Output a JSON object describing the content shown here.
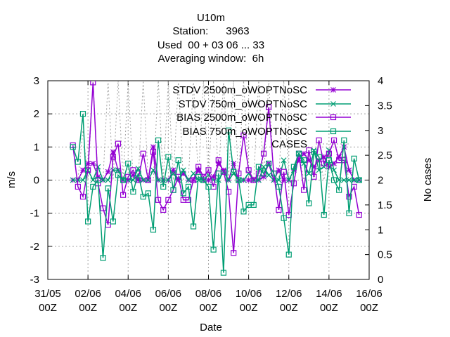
{
  "chart_data": {
    "type": "line",
    "title_lines": [
      "U10m",
      "Station:      3963",
      "Used  00 + 03 06 ... 33",
      "Averaging window:  6h"
    ],
    "xlabel": "Date",
    "ylabel": "m/s",
    "y2label": "No cases",
    "xlim": [
      0,
      16
    ],
    "ylim": [
      -3,
      3
    ],
    "y2lim": [
      0,
      4
    ],
    "x_ticks": [
      {
        "x": 0,
        "line1": "31/05",
        "line2": "00Z"
      },
      {
        "x": 2,
        "line1": "02/06",
        "line2": "00Z"
      },
      {
        "x": 4,
        "line1": "04/06",
        "line2": "00Z"
      },
      {
        "x": 6,
        "line1": "06/06",
        "line2": "00Z"
      },
      {
        "x": 8,
        "line1": "08/06",
        "line2": "00Z"
      },
      {
        "x": 10,
        "line1": "10/06",
        "line2": "00Z"
      },
      {
        "x": 12,
        "line1": "12/06",
        "line2": "00Z"
      },
      {
        "x": 14,
        "line1": "14/06",
        "line2": "00Z"
      },
      {
        "x": 16,
        "line1": "16/06",
        "line2": "00Z"
      }
    ],
    "y_ticks": [
      -3,
      -2,
      -1,
      0,
      1,
      2,
      3
    ],
    "y2_ticks": [
      "0",
      "0.5",
      "1",
      "1.5",
      "2",
      "2.5",
      "3",
      "3.5",
      "4"
    ],
    "grid": true,
    "legend_position": "top-right",
    "colors": {
      "purple": "#9400d3",
      "green": "#009e73",
      "grey": "#a0a0a0"
    },
    "series": [
      {
        "name": "STDV 2500m_oWOPTNoSC",
        "color": "#9400d3",
        "marker": "star",
        "x": [
          1.25,
          1.5,
          1.75,
          2.0,
          2.25,
          2.5,
          2.75,
          3.0,
          3.25,
          3.5,
          3.75,
          4.0,
          4.25,
          4.5,
          4.75,
          5.0,
          5.25,
          5.5,
          5.75,
          6.0,
          6.25,
          6.5,
          6.75,
          7.0,
          7.25,
          7.5,
          7.75,
          8.0,
          8.25,
          8.5,
          8.75,
          9.0,
          9.25,
          9.5,
          9.75,
          10.0,
          10.25,
          10.5,
          10.75,
          11.0,
          11.25,
          11.5,
          11.75,
          12.0,
          12.25,
          12.5,
          12.75,
          13.0,
          13.25,
          13.5,
          13.75,
          14.0,
          14.25,
          14.5,
          14.75,
          15.0,
          15.25,
          15.5
        ],
        "y": [
          0,
          0,
          0.3,
          0.5,
          0.5,
          0.1,
          0,
          0.25,
          0.85,
          0.3,
          0,
          0,
          0.15,
          0,
          0,
          0,
          1.0,
          0,
          0,
          0,
          0.3,
          0,
          0.2,
          0,
          0,
          0.3,
          0,
          0,
          0.1,
          0.5,
          0.3,
          0,
          0.5,
          0,
          0,
          0,
          0,
          0,
          0.1,
          0.5,
          0,
          0.3,
          0,
          0,
          0.3,
          0.6,
          0.8,
          0.6,
          0.4,
          0.6,
          0.7,
          0.4,
          0.5,
          0.7,
          1.0,
          0.3,
          0,
          0
        ],
        "y_axis": "y1"
      },
      {
        "name": "STDV 750m_oWOPTNoSC",
        "color": "#009e73",
        "marker": "x",
        "x": [
          1.25,
          1.5,
          1.75,
          2.0,
          2.25,
          2.5,
          2.75,
          3.0,
          3.25,
          3.5,
          3.75,
          4.0,
          4.25,
          4.5,
          4.75,
          5.0,
          5.25,
          5.5,
          5.75,
          6.0,
          6.25,
          6.5,
          6.75,
          7.0,
          7.25,
          7.5,
          7.75,
          8.0,
          8.25,
          8.5,
          8.75,
          9.0,
          9.25,
          9.5,
          9.75,
          10.0,
          10.25,
          10.5,
          10.75,
          11.0,
          11.25,
          11.5,
          11.75,
          12.0,
          12.25,
          12.5,
          12.75,
          13.0,
          13.25,
          13.5,
          13.75,
          14.0,
          14.25,
          14.5,
          14.75,
          15.0,
          15.25,
          15.5
        ],
        "y": [
          0,
          0,
          0,
          0.3,
          0,
          0.4,
          0,
          0,
          0.3,
          0.3,
          0,
          0,
          0,
          0.35,
          0,
          0,
          0.3,
          0,
          0,
          0,
          0.2,
          0,
          0.3,
          0,
          0.2,
          0,
          0,
          0.15,
          0,
          0,
          0.25,
          0,
          0.2,
          0,
          0,
          0.2,
          0,
          0,
          0.4,
          0.15,
          0,
          0,
          0.6,
          0,
          0.3,
          0.8,
          0.5,
          0.2,
          0.9,
          0.3,
          0.4,
          0.9,
          0.3,
          0,
          0,
          0,
          0,
          0
        ],
        "y_axis": "y1"
      },
      {
        "name": "BIAS 2500m_oWOPTNoSC",
        "color": "#9400d3",
        "marker": "square",
        "x": [
          1.25,
          1.5,
          1.75,
          2.0,
          2.25,
          2.5,
          2.75,
          3.0,
          3.25,
          3.5,
          3.75,
          4.0,
          4.25,
          4.5,
          4.75,
          5.0,
          5.25,
          5.5,
          5.75,
          6.0,
          6.25,
          6.5,
          6.75,
          7.0,
          7.25,
          7.5,
          7.75,
          8.0,
          8.25,
          8.5,
          8.75,
          9.0,
          9.25,
          9.5,
          9.75,
          10.0,
          10.25,
          10.5,
          10.75,
          11.0,
          11.25,
          11.5,
          11.75,
          12.0,
          12.25,
          12.5,
          12.75,
          13.0,
          13.25,
          13.5,
          13.75,
          14.0,
          14.25,
          14.5,
          14.75,
          15.0,
          15.25,
          15.5
        ],
        "y": [
          1.05,
          -0.2,
          -0.5,
          0.3,
          2.95,
          -0.1,
          -0.85,
          -1.35,
          0.7,
          1.1,
          -0.45,
          0.1,
          0.3,
          0,
          0.8,
          0,
          0.85,
          -0.6,
          -0.9,
          -0.6,
          -0.3,
          0.1,
          -0.6,
          -0.6,
          0,
          0.4,
          0.1,
          0.3,
          -0.2,
          0.6,
          0.25,
          -0.35,
          -2.2,
          0.2,
          1.35,
          0.3,
          0,
          0.2,
          0.8,
          2.2,
          0.2,
          -0.9,
          0.25,
          -1.05,
          -0.1,
          0.8,
          -0.3,
          0.9,
          0.1,
          1.2,
          0.5,
          0.8,
          1.2,
          0.6,
          0.6,
          -0.5,
          -0.2,
          -1.05
        ],
        "y_axis": "y1"
      },
      {
        "name": "BIAS 750m_oWOPTNoSC",
        "color": "#009e73",
        "marker": "square",
        "x": [
          1.25,
          1.5,
          1.75,
          2.0,
          2.25,
          2.5,
          2.75,
          3.0,
          3.25,
          3.5,
          3.75,
          4.0,
          4.25,
          4.5,
          4.75,
          5.0,
          5.25,
          5.5,
          5.75,
          6.0,
          6.25,
          6.5,
          6.75,
          7.0,
          7.25,
          7.5,
          7.75,
          8.0,
          8.25,
          8.5,
          8.75,
          9.0,
          9.25,
          9.5,
          9.75,
          10.0,
          10.25,
          10.5,
          10.75,
          11.0,
          11.25,
          11.5,
          11.75,
          12.0,
          12.25,
          12.5,
          12.75,
          13.0,
          13.25,
          13.5,
          13.75,
          14.0,
          14.25,
          14.5,
          14.75,
          15.0,
          15.25,
          15.5
        ],
        "y": [
          1.0,
          0.55,
          2.0,
          -1.25,
          -0.2,
          0,
          -2.35,
          -0.25,
          -1.25,
          0.15,
          0,
          0.5,
          -0.35,
          0.2,
          -0.5,
          -0.4,
          -1.5,
          1.2,
          -0.2,
          0.7,
          -0.3,
          0.6,
          -0.4,
          -0.2,
          -1.4,
          0.1,
          0,
          -0.2,
          -2.1,
          0.2,
          -2.8,
          1.5,
          0.25,
          0,
          -0.95,
          -0.75,
          -0.75,
          0.4,
          0.2,
          0.5,
          0.2,
          -0.2,
          -1.15,
          -2.25,
          0.4,
          0.8,
          0.6,
          -0.7,
          0.85,
          0.7,
          -1.05,
          0.6,
          0,
          -0.3,
          1.2,
          -1.0,
          0.65,
          0
        ],
        "y_axis": "y1"
      },
      {
        "name": "CASES",
        "color": "#a0a0a0",
        "marker": "none",
        "dashed": true,
        "x": [
          1.25,
          1.5,
          1.75,
          2.0,
          2.25,
          2.5,
          2.75,
          3.0,
          3.25,
          3.5,
          3.75,
          4.0,
          4.25,
          4.5,
          4.75,
          5.0,
          5.25,
          5.5,
          5.75,
          6.0,
          6.25,
          6.5,
          6.75,
          7.0,
          7.25,
          7.5,
          7.75,
          8.0,
          8.25,
          8.5,
          8.75,
          9.0,
          9.25,
          9.5,
          9.75,
          10.0,
          10.25,
          10.5,
          10.75,
          11.0,
          11.25,
          11.5,
          11.75,
          12.0,
          12.25,
          12.5,
          12.75,
          13.0,
          13.25,
          13.5,
          13.75,
          14.0,
          14.25,
          14.5,
          14.75,
          15.0,
          15.25,
          15.5
        ],
        "y": [
          2,
          2,
          3,
          2,
          4,
          2,
          2,
          4,
          2,
          4,
          2,
          4,
          2,
          2,
          4,
          2,
          2,
          4,
          2,
          4,
          2,
          4,
          2,
          2,
          4,
          2,
          4,
          2,
          4,
          2,
          4,
          2,
          4,
          2,
          4,
          2,
          2,
          4,
          2,
          4,
          2,
          2,
          4,
          2,
          2,
          2.5,
          2,
          2.5,
          2,
          2.5,
          2,
          2.5,
          2,
          2,
          2.5,
          2,
          2,
          2
        ],
        "y_axis": "y2"
      }
    ]
  }
}
